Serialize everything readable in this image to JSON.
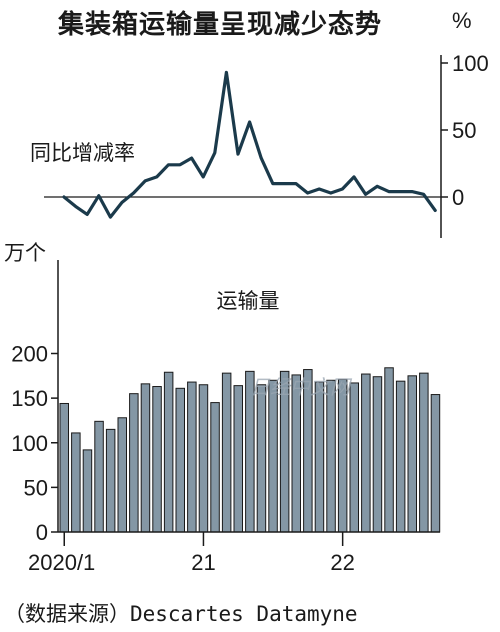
{
  "title": "集装箱运输量呈现减少态势",
  "source_prefix": "（数据来源）",
  "source_name": "Descartes Datamyne",
  "watermark": "日经中文网",
  "colors": {
    "line": "#1b3a4b",
    "bar_fill": "#8497a5",
    "bar_stroke": "#1a1a1a",
    "axis": "#1a1a1a",
    "watermark": "#9aa6b2"
  },
  "chart_data": [
    {
      "type": "line",
      "series_label": "同比增减率",
      "unit": "%",
      "ylim": [
        -20,
        100
      ],
      "yticks": [
        0,
        50,
        100
      ],
      "ytick_labels": [
        "0",
        "50",
        "100"
      ],
      "zero_line": true,
      "y_axis_side": "right",
      "x_start": "2020-01",
      "values": [
        0,
        -7,
        -13,
        1,
        -15,
        -4,
        3,
        12,
        15,
        24,
        24,
        29,
        15,
        33,
        93,
        32,
        56,
        29,
        10,
        10,
        10,
        3,
        6,
        3,
        6,
        15,
        2,
        8,
        4,
        4,
        4,
        2,
        -10
      ]
    },
    {
      "type": "bar",
      "series_label": "运输量",
      "unit": "万个",
      "ylim": [
        0,
        200
      ],
      "yticks": [
        0,
        50,
        100,
        150,
        200
      ],
      "ytick_labels": [
        "0",
        "50",
        "100",
        "150",
        "200"
      ],
      "grid": false,
      "x_start": "2020-01",
      "xtick_labels": [
        {
          "month_index": 0,
          "label": "2020/1"
        },
        {
          "month_index": 12,
          "label": "21"
        },
        {
          "month_index": 24,
          "label": "22"
        }
      ],
      "values": [
        144,
        111,
        92,
        124,
        115,
        128,
        155,
        166,
        163,
        179,
        161,
        168,
        165,
        145,
        178,
        164,
        180,
        165,
        170,
        180,
        176,
        182,
        168,
        170,
        171,
        167,
        177,
        174,
        184,
        169,
        175,
        178,
        154
      ]
    }
  ]
}
